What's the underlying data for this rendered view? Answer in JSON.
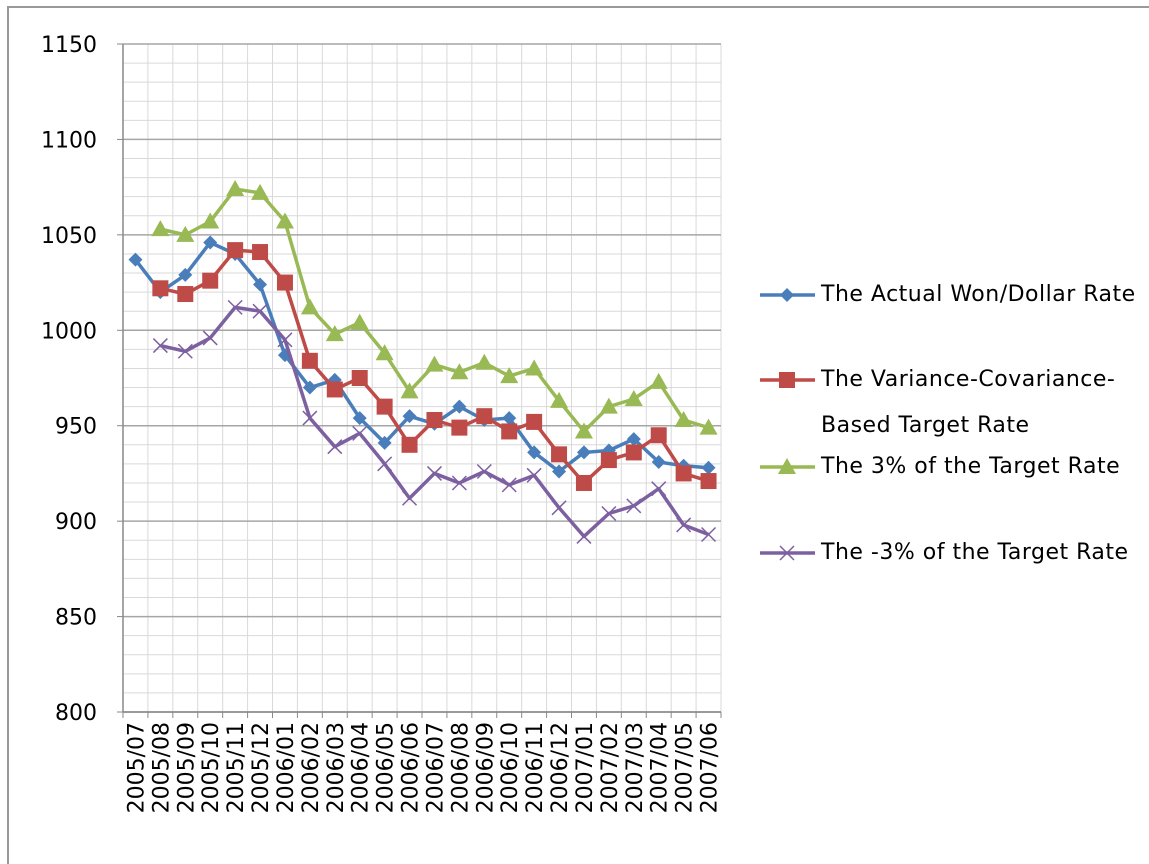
{
  "chart_data": {
    "type": "line",
    "categories": [
      "2005/07",
      "2005/08",
      "2005/09",
      "2005/10",
      "2005/11",
      "2005/12",
      "2006/01",
      "2006/02",
      "2006/03",
      "2006/04",
      "2006/05",
      "2006/06",
      "2006/07",
      "2006/08",
      "2006/09",
      "2006/10",
      "2006/11",
      "2006/12",
      "2007/01",
      "2007/02",
      "2007/03",
      "2007/04",
      "2007/05",
      "2007/06"
    ],
    "series": [
      {
        "name": "The Actual Won/Dollar Rate",
        "color": "#4a7ebb",
        "marker": "diamond",
        "values": [
          1037,
          1020,
          1029,
          1046,
          1040,
          1024,
          987,
          970,
          974,
          954,
          941,
          955,
          951,
          960,
          953,
          954,
          936,
          926,
          936,
          937,
          943,
          931,
          929,
          928
        ]
      },
      {
        "name": "The Variance-Covariance-Based Target Rate",
        "color": "#be4b48",
        "marker": "square",
        "values": [
          null,
          1022,
          1019,
          1026,
          1042,
          1041,
          1025,
          984,
          969,
          975,
          960,
          940,
          953,
          949,
          955,
          947,
          952,
          935,
          920,
          932,
          936,
          945,
          925,
          921
        ]
      },
      {
        "name": "The 3% of the Target Rate",
        "color": "#98b954",
        "marker": "triangle",
        "values": [
          null,
          1053,
          1050,
          1057,
          1074,
          1072,
          1057,
          1012,
          998,
          1004,
          988,
          968,
          982,
          978,
          983,
          976,
          980,
          963,
          947,
          960,
          964,
          973,
          953,
          949
        ]
      },
      {
        "name": "The -3% of the Target Rate",
        "color": "#7d60a0",
        "marker": "x",
        "values": [
          null,
          992,
          989,
          996,
          1012,
          1010,
          995,
          954,
          939,
          946,
          930,
          912,
          925,
          920,
          926,
          919,
          924,
          907,
          892,
          904,
          908,
          917,
          898,
          893
        ]
      }
    ],
    "ylim": [
      800,
      1150
    ],
    "yticks": [
      800,
      850,
      900,
      950,
      1000,
      1050,
      1100,
      1150
    ],
    "grid": true,
    "legend": "right"
  }
}
